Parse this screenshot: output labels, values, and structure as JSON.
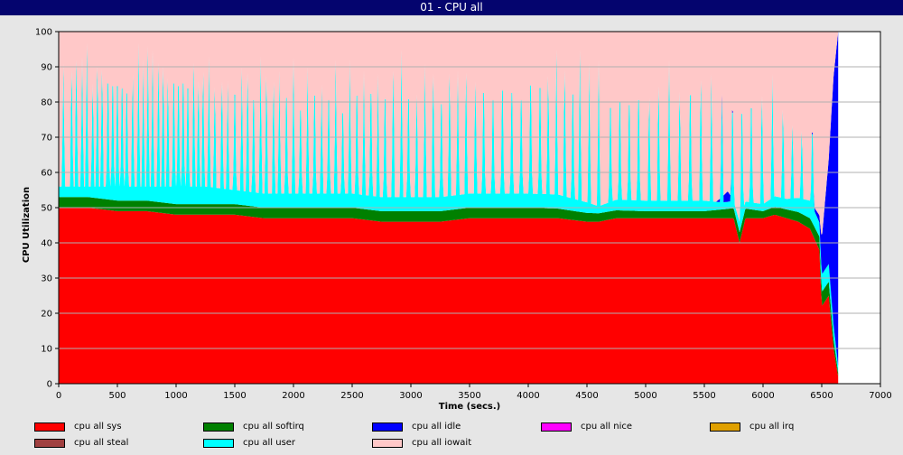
{
  "window": {
    "title": "01 - CPU all"
  },
  "chart_data": {
    "type": "area",
    "stacked": true,
    "title": "01 - CPU all",
    "xlabel": "Time (secs.)",
    "ylabel": "CPU Utilization",
    "xlim": [
      0,
      7000
    ],
    "ylim": [
      0,
      100
    ],
    "xticks": [
      0,
      500,
      1000,
      1500,
      2000,
      2500,
      3000,
      3500,
      4000,
      4500,
      5000,
      5500,
      6000,
      6500,
      7000
    ],
    "yticks": [
      0,
      10,
      20,
      30,
      40,
      50,
      60,
      70,
      80,
      90,
      100
    ],
    "grid": true,
    "legend_position": "bottom",
    "series_order_bottom_to_top": [
      "cpu all sys",
      "cpu all softirq",
      "cpu all user",
      "cpu all idle",
      "cpu all iowait"
    ],
    "series": [
      {
        "name": "cpu all sys",
        "color": "#ff0000",
        "x": [
          0,
          250,
          500,
          750,
          1000,
          1250,
          1500,
          1750,
          2000,
          2250,
          2500,
          2750,
          3000,
          3250,
          3500,
          3750,
          4000,
          4250,
          4500,
          4600,
          4750,
          5000,
          5250,
          5500,
          5650,
          5750,
          5800,
          5850,
          6000,
          6100,
          6200,
          6300,
          6400,
          6480,
          6500,
          6560,
          6600,
          6640
        ],
        "values": [
          50,
          50,
          49,
          49,
          48,
          48,
          48,
          47,
          47,
          47,
          47,
          46,
          46,
          46,
          47,
          47,
          47,
          47,
          46,
          46,
          47,
          47,
          47,
          47,
          47,
          47,
          40,
          47,
          47,
          48,
          47,
          46,
          44,
          38,
          22,
          25,
          10,
          2
        ]
      },
      {
        "name": "cpu all softirq",
        "color": "#008000",
        "x": [
          0,
          1000,
          2000,
          3000,
          4000,
          5000,
          5500,
          5800,
          6000,
          6400,
          6500,
          6560,
          6600,
          6640
        ],
        "values": [
          3,
          3,
          3,
          3,
          3,
          2,
          2,
          3,
          2,
          3,
          4,
          4,
          3,
          1
        ]
      },
      {
        "name": "cpu all user",
        "color": "#00ffff",
        "x": [
          0,
          250,
          500,
          750,
          1000,
          1250,
          1500,
          1750,
          2000,
          2250,
          2500,
          2750,
          3000,
          3250,
          3500,
          3750,
          4000,
          4250,
          4500,
          4600,
          4750,
          5000,
          5250,
          5500,
          5650,
          5750,
          5800,
          5850,
          6000,
          6100,
          6200,
          6300,
          6400,
          6480,
          6500,
          6560,
          6600,
          6640
        ],
        "values": [
          3,
          3,
          4,
          4,
          5,
          5,
          4,
          4,
          4,
          4,
          4,
          4,
          4,
          4,
          4,
          4,
          4,
          4,
          3,
          2,
          3,
          3,
          3,
          3,
          2,
          2,
          3,
          2,
          2,
          3,
          3,
          4,
          5,
          4,
          5,
          5,
          4,
          2
        ]
      },
      {
        "name": "cpu all idle",
        "color": "#0000ff",
        "x": [
          0,
          5600,
          5700,
          5750,
          6400,
          6480,
          6500,
          6560,
          6600,
          6640
        ],
        "values": [
          0,
          0,
          3,
          0,
          0,
          2,
          10,
          30,
          70,
          95
        ]
      },
      {
        "name": "cpu all nice",
        "color": "#ff00ff",
        "values": []
      },
      {
        "name": "cpu all irq",
        "color": "#e0a000",
        "values": []
      },
      {
        "name": "cpu all steal",
        "color": "#a04040",
        "values": []
      },
      {
        "name": "cpu all iowait",
        "color": "#ffc8c8",
        "x": [
          0,
          6640
        ],
        "values": [
          44,
          2
        ]
      }
    ],
    "spikes": {
      "description": "cpu all user periodically spikes upward (replacing iowait) to these peak totals",
      "x": [
        40,
        110,
        150,
        200,
        240,
        290,
        330,
        370,
        420,
        460,
        500,
        540,
        580,
        630,
        680,
        720,
        760,
        800,
        850,
        890,
        930,
        980,
        1020,
        1060,
        1100,
        1150,
        1190,
        1230,
        1280,
        1330,
        1390,
        1440,
        1500,
        1560,
        1610,
        1660,
        1720,
        1770,
        1830,
        1880,
        1940,
        2000,
        2060,
        2120,
        2180,
        2240,
        2300,
        2360,
        2420,
        2480,
        2540,
        2600,
        2660,
        2720,
        2780,
        2850,
        2920,
        2980,
        3050,
        3120,
        3190,
        3260,
        3330,
        3400,
        3470,
        3550,
        3620,
        3700,
        3780,
        3860,
        3940,
        4020,
        4100,
        4170,
        4240,
        4310,
        4380,
        4440,
        4520,
        4600,
        4700,
        4780,
        4860,
        4940,
        5030,
        5110,
        5200,
        5290,
        5380,
        5470,
        5560,
        5650,
        5740,
        5820,
        5900,
        5990,
        6080,
        6170,
        6250,
        6330,
        6420
      ],
      "peak": [
        91,
        95,
        98,
        93,
        97,
        90,
        96,
        95,
        97,
        96,
        96,
        95,
        93,
        93,
        97,
        92,
        96,
        95,
        97,
        96,
        92,
        97,
        96,
        97,
        95,
        97,
        91,
        94,
        93,
        89,
        91,
        86,
        93,
        90,
        94,
        91,
        93,
        93,
        91,
        89,
        92,
        93,
        87,
        90,
        93,
        85,
        91,
        92,
        86,
        92,
        93,
        89,
        94,
        88,
        92,
        95,
        95,
        92,
        87,
        91,
        94,
        90,
        94,
        89,
        94,
        91,
        94,
        91,
        95,
        94,
        91,
        97,
        96,
        93,
        95,
        95,
        94,
        95,
        91,
        92,
        89,
        91,
        90,
        92,
        86,
        90,
        92,
        88,
        94,
        92,
        88,
        86,
        87,
        88,
        89,
        87,
        88,
        82,
        77,
        75,
        79
      ]
    }
  },
  "legend": {
    "items": [
      {
        "label": "cpu all sys",
        "color": "#ff0000"
      },
      {
        "label": "cpu all softirq",
        "color": "#008000"
      },
      {
        "label": "cpu all idle",
        "color": "#0000ff"
      },
      {
        "label": "cpu all nice",
        "color": "#ff00ff"
      },
      {
        "label": "cpu all irq",
        "color": "#e0a000"
      },
      {
        "label": "cpu all steal",
        "color": "#a04040"
      },
      {
        "label": "cpu all user",
        "color": "#00ffff"
      },
      {
        "label": "cpu all iowait",
        "color": "#ffc8c8"
      }
    ]
  }
}
